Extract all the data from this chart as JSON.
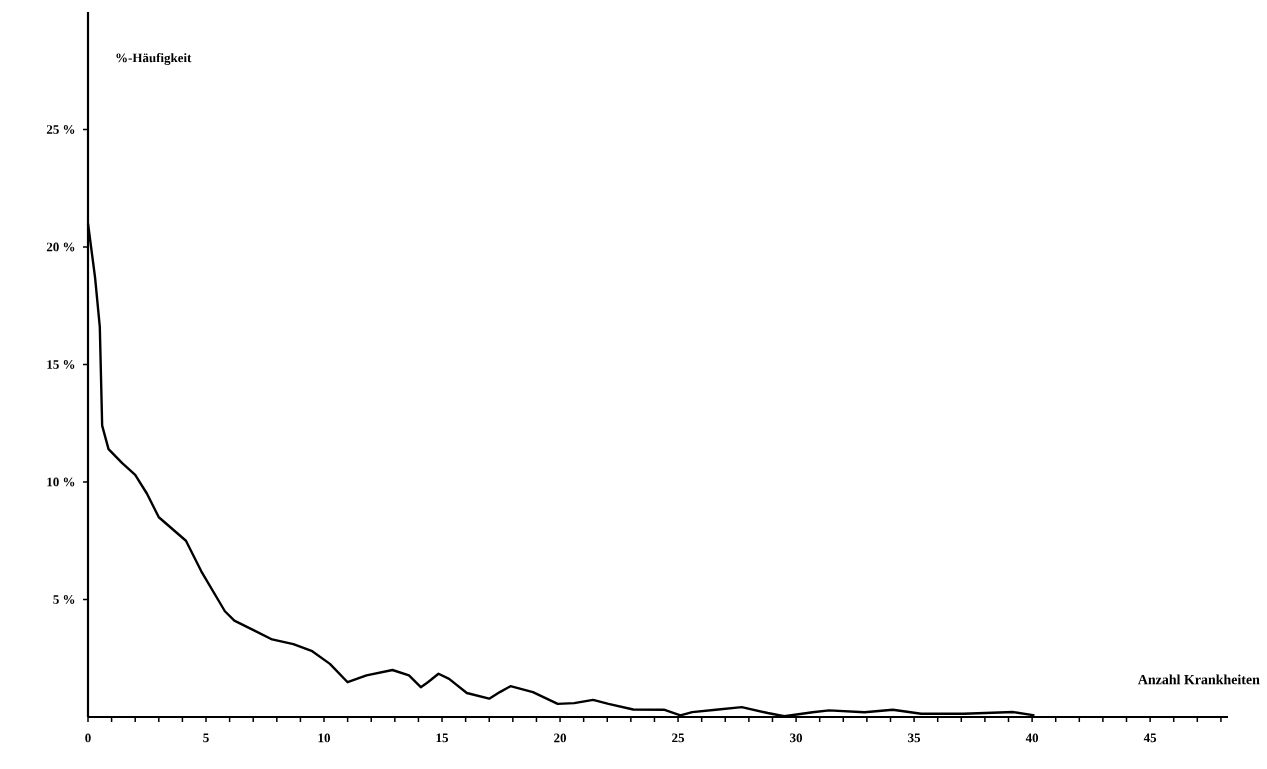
{
  "chart_data": {
    "type": "line",
    "xlabel": "Anzahl Krankheiten",
    "ylabel": "%-Häufigkeit",
    "x": [
      0,
      0.3,
      0.5,
      0.6,
      0.87,
      1.45,
      2,
      2.5,
      3,
      4.15,
      4.8,
      5.8,
      6.2,
      7.8,
      8.7,
      9.5,
      10.25,
      11,
      11.8,
      12.9,
      13.6,
      14.1,
      14.4,
      14.85,
      15.3,
      16.05,
      17,
      17.45,
      17.9,
      18.85,
      19.9,
      20.6,
      21.4,
      22.05,
      23.1,
      24.4,
      25.1,
      25.6,
      26.6,
      27.7,
      28.8,
      29.5,
      30.7,
      31.4,
      32.9,
      34.1,
      35.3,
      37.1,
      39.2,
      40.1
    ],
    "series": [
      {
        "color": "#000000",
        "values": [
          21,
          18.7,
          16.6,
          12.4,
          11.4,
          10.8,
          10.3,
          9.5,
          8.5,
          7.5,
          6.2,
          4.5,
          4.1,
          3.3,
          3.1,
          2.8,
          2.26,
          1.48,
          1.77,
          2.0,
          1.77,
          1.27,
          1.48,
          1.84,
          1.62,
          1.02,
          0.78,
          1.06,
          1.31,
          1.06,
          0.56,
          0.59,
          0.73,
          0.56,
          0.32,
          0.31,
          0.07,
          0.21,
          0.31,
          0.42,
          0.17,
          0.03,
          0.2,
          0.28,
          0.2,
          0.31,
          0.14,
          0.14,
          0.21,
          0.07
        ]
      }
    ],
    "xlim": [
      0,
      48.3
    ],
    "ylim": [
      0,
      30
    ],
    "xticks": [
      0,
      {
        "value": 1,
        "label": null
      },
      {
        "value": 2,
        "label": null
      },
      {
        "value": 3,
        "label": null
      },
      {
        "value": 4,
        "label": null
      },
      5,
      {
        "value": 6,
        "label": null
      },
      {
        "value": 7,
        "label": null
      },
      {
        "value": 8,
        "label": null
      },
      {
        "value": 9,
        "label": null
      },
      10,
      {
        "value": 11,
        "label": null
      },
      {
        "value": 12,
        "label": null
      },
      {
        "value": 13,
        "label": null
      },
      {
        "value": 14,
        "label": null
      },
      15,
      {
        "value": 16,
        "label": null
      },
      {
        "value": 17,
        "label": null
      },
      {
        "value": 18,
        "label": null
      },
      {
        "value": 19,
        "label": null
      },
      20,
      {
        "value": 21,
        "label": null
      },
      {
        "value": 22,
        "label": null
      },
      {
        "value": 23,
        "label": null
      },
      {
        "value": 24,
        "label": null
      },
      25,
      {
        "value": 26,
        "label": null
      },
      {
        "value": 27,
        "label": null
      },
      {
        "value": 28,
        "label": null
      },
      {
        "value": 29,
        "label": null
      },
      30,
      {
        "value": 31,
        "label": null
      },
      {
        "value": 32,
        "label": null
      },
      {
        "value": 33,
        "label": null
      },
      {
        "value": 34,
        "label": null
      },
      35,
      {
        "value": 36,
        "label": null
      },
      {
        "value": 37,
        "label": null
      },
      {
        "value": 38,
        "label": null
      },
      {
        "value": 39,
        "label": null
      },
      40,
      {
        "value": 41,
        "label": null
      },
      {
        "value": 42,
        "label": null
      },
      {
        "value": 43,
        "label": null
      },
      {
        "value": 44,
        "label": null
      },
      45,
      {
        "value": 46,
        "label": null
      },
      {
        "value": 47,
        "label": null
      },
      {
        "value": 48,
        "label": null
      }
    ],
    "yticks": [
      {
        "value": 5,
        "label": "5 %"
      },
      {
        "value": 10,
        "label": "10 %"
      },
      {
        "value": 15,
        "label": "15 %"
      },
      {
        "value": 20,
        "label": "20 %"
      },
      {
        "value": 25,
        "label": "25 %"
      }
    ],
    "grid": false,
    "legend": false,
    "marker": "none",
    "line_style": "solid"
  }
}
